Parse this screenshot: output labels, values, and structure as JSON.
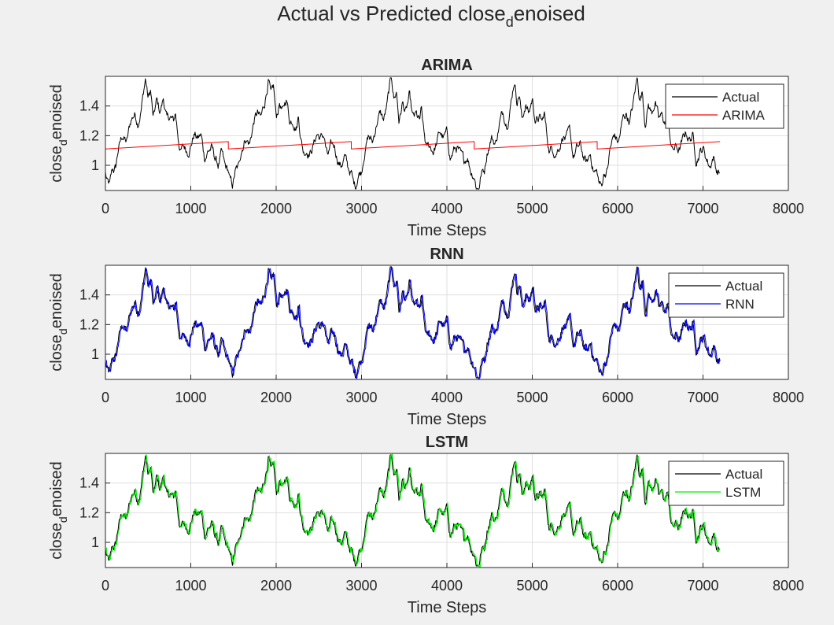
{
  "figure": {
    "title_main": "Actual vs Predicted close",
    "title_sub": "d",
    "title_tail": "enoised"
  },
  "chart_data": [
    {
      "type": "line",
      "title": "ARIMA",
      "xlabel": "Time Steps",
      "ylabel": {
        "main": "close",
        "sub": "d",
        "tail": "enoised"
      },
      "xlim": [
        0,
        8000
      ],
      "ylim": [
        0.83,
        1.6
      ],
      "xticks": [
        0,
        1000,
        2000,
        3000,
        4000,
        5000,
        6000,
        7000,
        8000
      ],
      "yticks": [
        1,
        1.2,
        1.4
      ],
      "grid": true,
      "legend_position": "top-right",
      "legend": [
        "Actual",
        "ARIMA"
      ],
      "series": [
        {
          "name": "Actual",
          "color": "#000000",
          "pattern": "cyclic-actual",
          "length": 7200
        },
        {
          "name": "ARIMA",
          "color": "#ff0000",
          "pattern": "sawtooth",
          "start": 1.11,
          "end": 1.16,
          "period": 1440,
          "length": 7200
        }
      ]
    },
    {
      "type": "line",
      "title": "RNN",
      "xlabel": "Time Steps",
      "ylabel": {
        "main": "close",
        "sub": "d",
        "tail": "enoised"
      },
      "xlim": [
        0,
        8000
      ],
      "ylim": [
        0.83,
        1.6
      ],
      "xticks": [
        0,
        1000,
        2000,
        3000,
        4000,
        5000,
        6000,
        7000,
        8000
      ],
      "yticks": [
        1,
        1.2,
        1.4
      ],
      "grid": true,
      "legend_position": "top-right",
      "legend": [
        "Actual",
        "RNN"
      ],
      "series": [
        {
          "name": "Actual",
          "color": "#000000",
          "pattern": "cyclic-actual",
          "length": 7200
        },
        {
          "name": "RNN",
          "color": "#0000ff",
          "pattern": "tracks-actual",
          "length": 7200
        }
      ]
    },
    {
      "type": "line",
      "title": "LSTM",
      "xlabel": "Time Steps",
      "ylabel": {
        "main": "close",
        "sub": "d",
        "tail": "enoised"
      },
      "xlim": [
        0,
        8000
      ],
      "ylim": [
        0.83,
        1.6
      ],
      "xticks": [
        0,
        1000,
        2000,
        3000,
        4000,
        5000,
        6000,
        7000,
        8000
      ],
      "yticks": [
        1,
        1.2,
        1.4
      ],
      "grid": true,
      "legend_position": "top-right",
      "legend": [
        "Actual",
        "LSTM"
      ],
      "series": [
        {
          "name": "Actual",
          "color": "#000000",
          "pattern": "cyclic-actual",
          "length": 7200
        },
        {
          "name": "LSTM",
          "color": "#00ee00",
          "pattern": "tracks-actual",
          "length": 7200
        }
      ]
    }
  ],
  "actual_cycle": {
    "period": 1440,
    "keypoints": [
      [
        0,
        0.95
      ],
      [
        20,
        0.88
      ],
      [
        50,
        0.85
      ],
      [
        80,
        0.95
      ],
      [
        120,
        0.97
      ],
      [
        150,
        1.1
      ],
      [
        200,
        1.2
      ],
      [
        250,
        1.15
      ],
      [
        300,
        1.3
      ],
      [
        340,
        1.35
      ],
      [
        380,
        1.3
      ],
      [
        420,
        1.4
      ],
      [
        470,
        1.59
      ],
      [
        500,
        1.45
      ],
      [
        530,
        1.5
      ],
      [
        560,
        1.3
      ],
      [
        600,
        1.42
      ],
      [
        640,
        1.35
      ],
      [
        680,
        1.45
      ],
      [
        720,
        1.3
      ],
      [
        760,
        1.32
      ],
      [
        800,
        1.28
      ],
      [
        820,
        1.35
      ],
      [
        850,
        1.2
      ],
      [
        880,
        1.1
      ],
      [
        920,
        1.12
      ],
      [
        960,
        1.1
      ],
      [
        1000,
        1.15
      ],
      [
        1040,
        1.22
      ],
      [
        1080,
        1.18
      ],
      [
        1120,
        1.2
      ],
      [
        1160,
        1.05
      ],
      [
        1200,
        1.1
      ],
      [
        1240,
        1.12
      ],
      [
        1280,
        1.05
      ],
      [
        1320,
        1.0
      ],
      [
        1360,
        1.07
      ],
      [
        1400,
        0.97
      ],
      [
        1440,
        0.95
      ]
    ]
  }
}
